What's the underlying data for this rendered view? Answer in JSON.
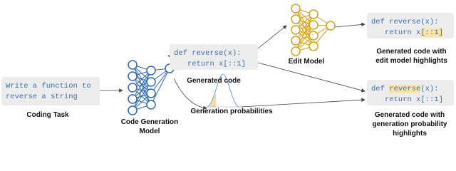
{
  "coding_task": {
    "code": [
      "Write a function to",
      "reverse a string"
    ],
    "label": "Coding Task"
  },
  "code_generation_model": {
    "label": [
      "Code Generation",
      "Model"
    ]
  },
  "generated_code": {
    "code": [
      [
        {
          "text": "def reverse(x):"
        }
      ],
      [
        {
          "text": "return x[::1]"
        }
      ]
    ],
    "label": "Generated code"
  },
  "generation_probabilities": {
    "label": "Generation probabilities"
  },
  "edit_model": {
    "label": "Edit Model"
  },
  "edit_model_output": {
    "code": [
      [
        {
          "text": "def reverse(x):"
        }
      ],
      [
        {
          "text": "return x"
        },
        {
          "text": "[::1]",
          "highlight": true
        }
      ]
    ],
    "label": [
      "Generated code with",
      "edit model highlights"
    ]
  },
  "probability_output": {
    "code": [
      [
        {
          "text": "def "
        },
        {
          "text": "reverse",
          "highlight": true
        },
        {
          "text": "(x):"
        }
      ],
      [
        {
          "text": "return x[::1]"
        }
      ]
    ],
    "label": [
      "Generated code with",
      "generation probability",
      "highlights"
    ]
  }
}
